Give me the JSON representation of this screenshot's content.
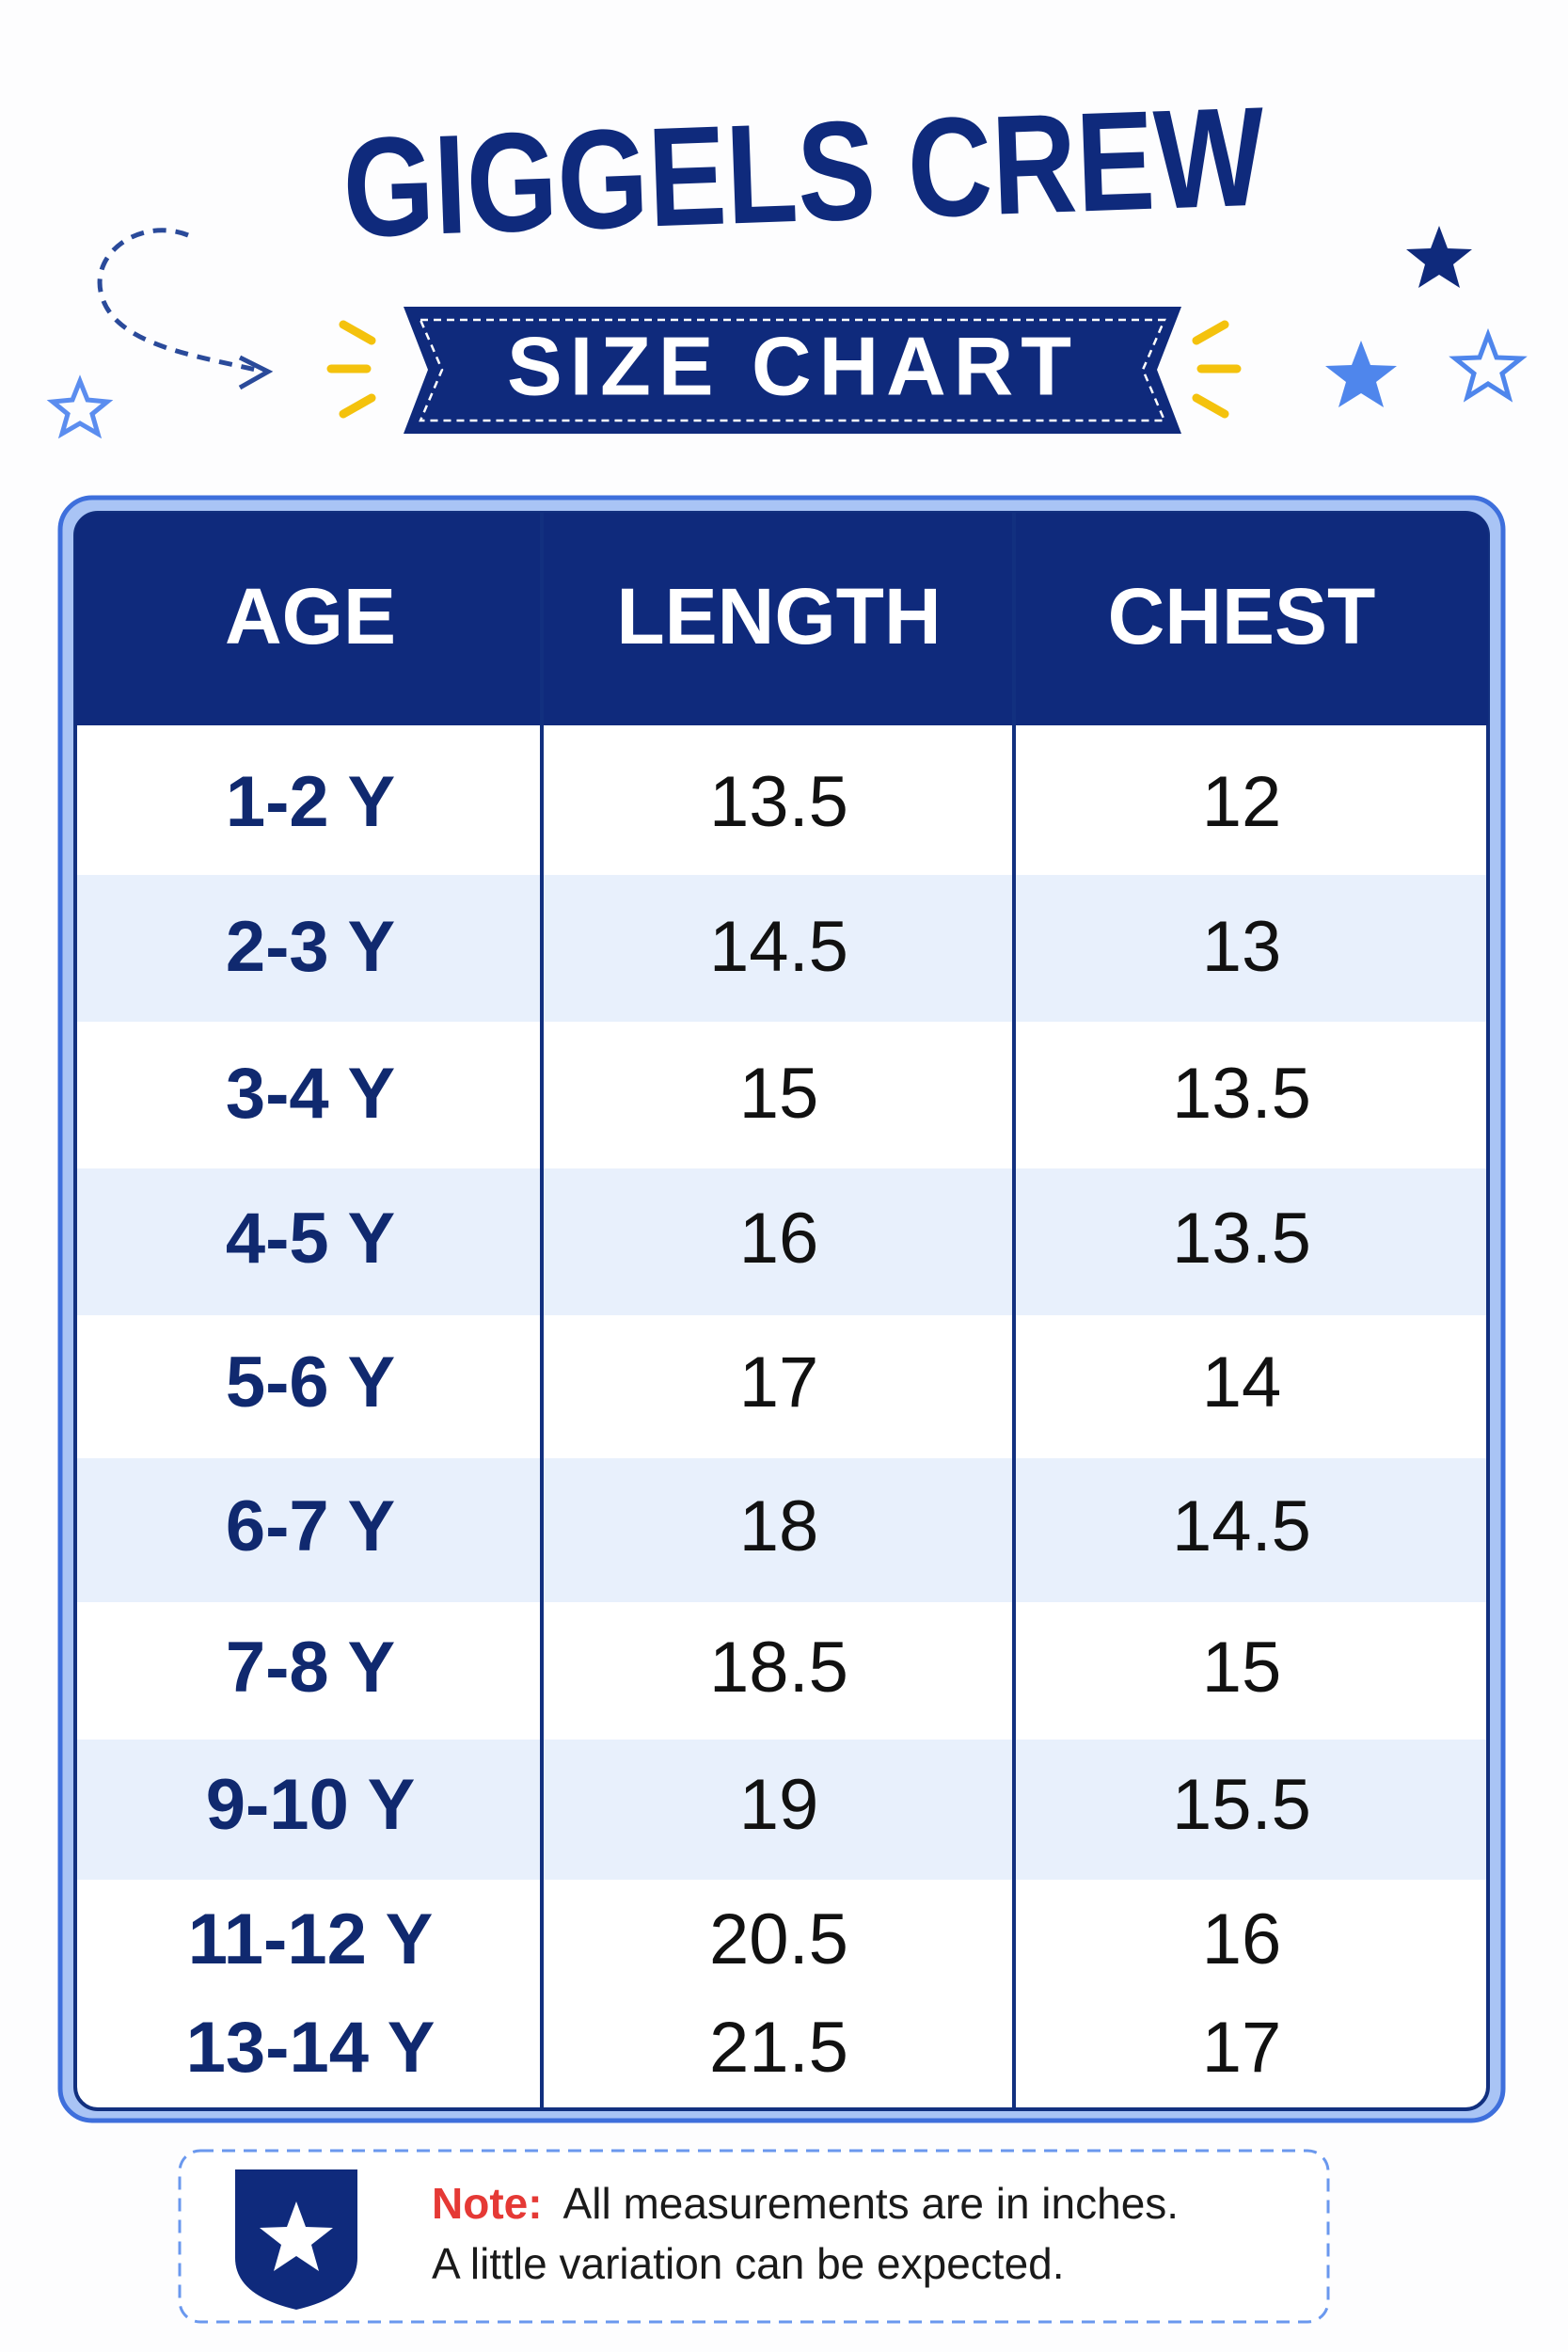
{
  "header": {
    "title": "GIGGELS CREW",
    "subtitle": "SIZE CHART"
  },
  "table": {
    "columns": [
      "AGE",
      "LENGTH",
      "CHEST"
    ],
    "rows": [
      [
        "1-2 Y",
        13.5,
        12
      ],
      [
        "2-3 Y",
        14.5,
        13
      ],
      [
        "3-4 Y",
        15,
        13.5
      ],
      [
        "4-5 Y",
        16,
        13.5
      ],
      [
        "5-6 Y",
        17,
        14
      ],
      [
        "6-7 Y",
        18,
        14.5
      ],
      [
        "7-8 Y",
        18.5,
        15
      ],
      [
        "9-10 Y",
        19,
        15.5
      ],
      [
        "11-12 Y",
        20.5,
        16
      ],
      [
        "13-14 Y",
        21.5,
        17
      ]
    ]
  },
  "note": {
    "label": "Note:",
    "lines": [
      "All measurements are in inches.",
      "A little variation can be expected."
    ]
  }
}
